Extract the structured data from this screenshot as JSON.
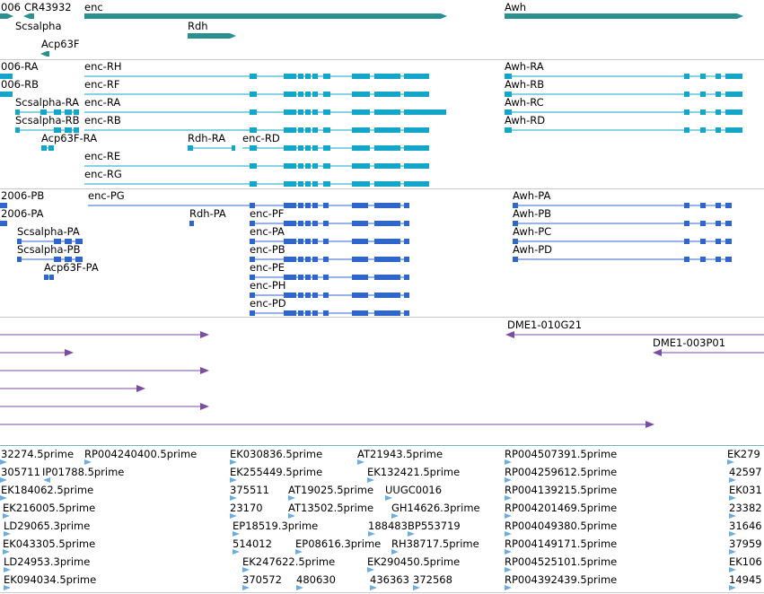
{
  "colors": {
    "gene": "#2a8f8f",
    "transcript": "#13a6c8",
    "protein": "#2f66cc",
    "clone": "#7a4da3",
    "est": "#6aaee0",
    "separator": "#c8c8c8"
  },
  "tracks": {
    "genes": {
      "labels": [
        "006",
        "CR43932",
        "enc",
        "Awh",
        "Scsalpha",
        "Rdh",
        "Acp63F"
      ]
    },
    "transcripts": {
      "labels": [
        "006-RA",
        "006-RB",
        "enc-RH",
        "enc-RF",
        "enc-RA",
        "enc-RB",
        "enc-RD",
        "enc-RE",
        "enc-RG",
        "Scsalpha-RA",
        "Scsalpha-RB",
        "Acp63F-RA",
        "Rdh-RA",
        "Awh-RA",
        "Awh-RB",
        "Awh-RC",
        "Awh-RD"
      ]
    },
    "proteins": {
      "labels": [
        "2006-PB",
        "2006-PA",
        "enc-PG",
        "Rdh-PA",
        "enc-PF",
        "enc-PA",
        "enc-PB",
        "enc-PE",
        "enc-PH",
        "enc-PD",
        "Scsalpha-PA",
        "Scsalpha-PB",
        "Acp63F-PA",
        "Awh-PA",
        "Awh-PB",
        "Awh-PC",
        "Awh-PD"
      ]
    },
    "clones": {
      "labels": [
        "DME1-010G21",
        "DME1-003P01"
      ]
    },
    "ests": {
      "labels": [
        "32274.5prime",
        "RP004240400.5prime",
        "EK030836.5prime",
        "AT21943.5prime",
        "RP004507391.5prime",
        "EK279",
        "305711",
        "IP01788.5prime",
        "EK255449.5prime",
        "EK132421.5prime",
        "RP004259612.5prime",
        "42597",
        "EK184062.5prime",
        "375511",
        "AT19025.5prime",
        "UUGC0016",
        "RP004139215.5prime",
        "EK031",
        "EK216005.5prime",
        "23170",
        "AT13502.5prime",
        "GH14626.3prime",
        "RP004201469.5prime",
        "23382",
        "LD29065.3prime",
        "EP18519.3prime",
        "188483",
        "BP553719",
        "RP004049380.5prime",
        "31646",
        "EK043305.5prime",
        "514012",
        "EP08616.3prime",
        "RH38717.5prime",
        "RP004149171.5prime",
        "37959",
        "LD24953.3prime",
        "EK247622.5prime",
        "EK290450.5prime",
        "RP004525101.5prime",
        "EK106",
        "EK094034.5prime",
        "370572",
        "480630",
        "436363",
        "372568",
        "RP004392439.5prime",
        "14945"
      ]
    }
  }
}
